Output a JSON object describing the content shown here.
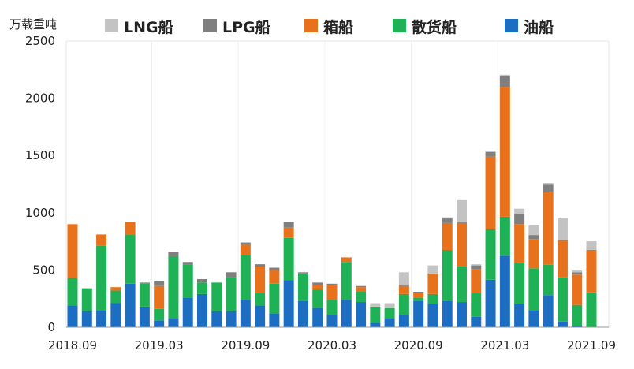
{
  "chart_data": {
    "type": "bar",
    "stacked": true,
    "unit_label": "万载重吨",
    "ylim": [
      0,
      2500
    ],
    "yticks": [
      0,
      500,
      1000,
      1500,
      2000,
      2500
    ],
    "legend_placement": "top",
    "grid": false,
    "categories": [
      "2018.09",
      "2018.10",
      "2018.11",
      "2018.12",
      "2019.01",
      "2019.02",
      "2019.03",
      "2019.04",
      "2019.05",
      "2019.06",
      "2019.07",
      "2019.08",
      "2019.09",
      "2019.10",
      "2019.11",
      "2019.12",
      "2020.01",
      "2020.02",
      "2020.03",
      "2020.04",
      "2020.05",
      "2020.06",
      "2020.07",
      "2020.08",
      "2020.09",
      "2020.10",
      "2020.11",
      "2020.12",
      "2021.01",
      "2021.02",
      "2021.03",
      "2021.04",
      "2021.05",
      "2021.06",
      "2021.07",
      "2021.08",
      "2021.09"
    ],
    "xtick_labels": [
      "2018.09",
      "2019.03",
      "2019.09",
      "2020.03",
      "2020.09",
      "2021.03",
      "2021.09"
    ],
    "series": [
      {
        "name": "油船",
        "color": "#1b6ec2",
        "values": [
          190,
          140,
          150,
          210,
          380,
          180,
          60,
          80,
          260,
          290,
          140,
          140,
          240,
          190,
          120,
          410,
          230,
          170,
          110,
          240,
          220,
          40,
          80,
          110,
          230,
          205,
          230,
          220,
          90,
          415,
          625,
          200,
          150,
          280,
          50,
          10,
          0
        ]
      },
      {
        "name": "散货船",
        "color": "#1fb155",
        "values": [
          240,
          200,
          560,
          110,
          430,
          200,
          100,
          540,
          290,
          100,
          250,
          300,
          390,
          110,
          260,
          370,
          240,
          160,
          130,
          330,
          90,
          140,
          90,
          180,
          30,
          85,
          445,
          315,
          210,
          440,
          340,
          365,
          365,
          265,
          385,
          185,
          305
        ]
      },
      {
        "name": "箱船",
        "color": "#e8721c",
        "values": [
          470,
          0,
          100,
          30,
          110,
          0,
          200,
          0,
          0,
          0,
          0,
          0,
          90,
          230,
          120,
          90,
          0,
          40,
          130,
          40,
          40,
          0,
          0,
          70,
          40,
          180,
          235,
          375,
          205,
          635,
          1135,
          335,
          255,
          635,
          325,
          265,
          370
        ]
      },
      {
        "name": "LPG船",
        "color": "#7f7f7f",
        "values": [
          0,
          0,
          0,
          0,
          0,
          10,
          40,
          40,
          20,
          30,
          0,
          40,
          20,
          20,
          20,
          50,
          10,
          20,
          10,
          0,
          10,
          0,
          0,
          10,
          10,
          0,
          40,
          10,
          35,
          40,
          95,
          85,
          35,
          65,
          0,
          20,
          0
        ]
      },
      {
        "name": "LNG船",
        "color": "#c3c3c3",
        "values": [
          0,
          0,
          0,
          0,
          0,
          0,
          0,
          0,
          0,
          0,
          0,
          0,
          0,
          0,
          0,
          0,
          0,
          0,
          0,
          0,
          0,
          30,
          40,
          110,
          0,
          70,
          10,
          190,
          10,
          10,
          10,
          50,
          85,
          15,
          190,
          15,
          75
        ]
      }
    ]
  }
}
